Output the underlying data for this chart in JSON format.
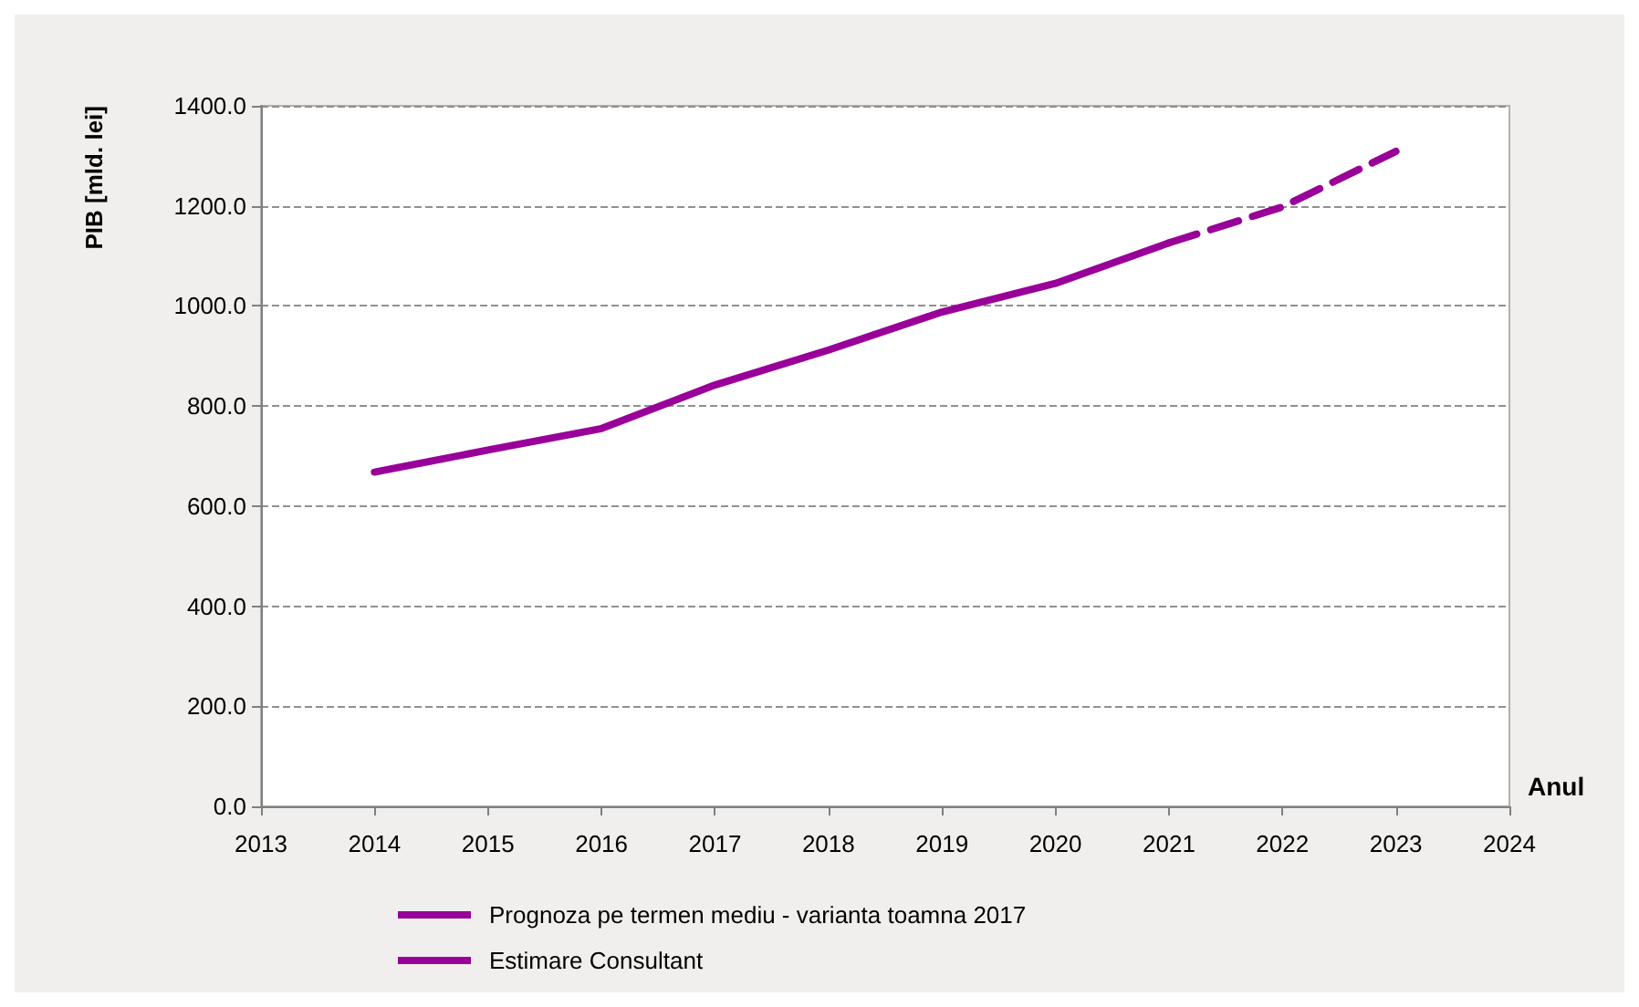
{
  "chart_data": {
    "type": "line",
    "xlabel": "Anul",
    "ylabel": "PIB [mld. lei]",
    "xlim": [
      2013,
      2024
    ],
    "xticks": [
      2013,
      2014,
      2015,
      2016,
      2017,
      2018,
      2019,
      2020,
      2021,
      2022,
      2023,
      2024
    ],
    "ylim": [
      0,
      1400
    ],
    "yticks": [
      {
        "value": 0,
        "label": "0.0"
      },
      {
        "value": 200,
        "label": "200.0"
      },
      {
        "value": 400,
        "label": "400.0"
      },
      {
        "value": 600,
        "label": "600.0"
      },
      {
        "value": 800,
        "label": "800.0"
      },
      {
        "value": 1000,
        "label": "1000.0"
      },
      {
        "value": 1200,
        "label": "1200.0"
      },
      {
        "value": 1400,
        "label": "1400.0"
      }
    ],
    "grid": "y",
    "legend": "bottom",
    "marker": "none",
    "series": [
      {
        "name": "Prognoza pe termen mediu - varianta toamna 2017",
        "color": "#990099",
        "line_style": "solid",
        "x": [
          2014,
          2015,
          2016,
          2017,
          2018,
          2019,
          2020,
          2021
        ],
        "values": [
          668,
          712,
          755,
          842,
          912,
          988,
          1045,
          1126
        ]
      },
      {
        "name": "Estimare Consultant",
        "color": "#990099",
        "line_style": "dashed",
        "x": [
          2021,
          2022,
          2023
        ],
        "values": [
          1126,
          1198,
          1309
        ]
      }
    ]
  }
}
